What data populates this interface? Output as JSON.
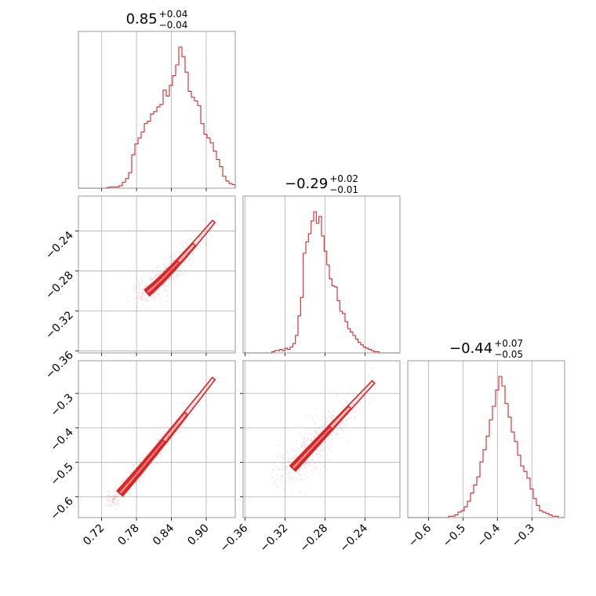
{
  "chart_data": {
    "type": "corner",
    "color": "#d62728",
    "parameters": [
      {
        "median": "0.85",
        "err_plus": "+0.04",
        "err_minus": "−0.04"
      },
      {
        "median": "−0.29",
        "err_plus": "+0.02",
        "err_minus": "−0.01"
      },
      {
        "median": "−0.44",
        "err_plus": "+0.07",
        "err_minus": "−0.05"
      }
    ],
    "ranges": [
      [
        0.68,
        0.95
      ],
      [
        -0.362,
        -0.205
      ],
      [
        -0.66,
        -0.205
      ]
    ],
    "ticks": [
      {
        "values": [
          0.72,
          0.78,
          0.84,
          0.9
        ],
        "labels": [
          "0.72",
          "0.78",
          "0.84",
          "0.90"
        ]
      },
      {
        "values": [
          -0.36,
          -0.32,
          -0.28,
          -0.24
        ],
        "labels": [
          "−0.36",
          "−0.32",
          "−0.28",
          "−0.24"
        ]
      },
      {
        "values": [
          -0.6,
          -0.5,
          -0.4,
          -0.3
        ],
        "labels": [
          "−0.6",
          "−0.5",
          "−0.4",
          "−0.3"
        ]
      }
    ],
    "histograms": [
      {
        "param": 0,
        "counts": [
          0,
          0,
          0,
          0,
          0,
          0,
          0,
          0,
          0,
          0.5,
          1,
          1,
          1,
          2,
          5,
          8,
          13,
          28,
          37,
          42,
          47,
          54,
          56,
          62,
          64,
          68,
          70,
          82,
          77,
          86,
          94,
          103,
          118,
          110,
          97,
          81,
          76,
          73,
          69,
          54,
          45,
          42,
          38,
          31,
          24,
          18,
          10,
          6,
          4,
          3
        ]
      },
      {
        "param": 1,
        "counts": [
          0,
          0,
          0,
          0,
          0,
          0,
          0,
          0,
          0,
          0,
          0,
          1,
          2,
          2,
          3,
          2,
          4,
          3,
          5,
          8,
          15,
          32,
          48,
          86,
          96,
          103,
          114,
          122,
          112,
          118,
          101,
          88,
          76,
          64,
          58,
          57,
          45,
          36,
          34,
          27,
          21,
          18,
          15,
          12,
          9,
          7,
          5,
          4,
          3,
          2,
          1,
          1,
          0,
          0,
          0,
          0,
          0,
          0,
          0,
          0
        ]
      },
      {
        "param": 2,
        "counts": [
          0,
          0,
          0,
          0,
          0,
          0,
          0,
          0,
          0,
          0,
          0,
          0,
          0,
          1,
          1,
          2,
          4,
          5,
          8,
          12,
          18,
          24,
          30,
          41,
          50,
          60,
          72,
          82,
          94,
          104,
          97,
          84,
          74,
          63,
          56,
          46,
          38,
          34,
          29,
          21,
          14,
          9,
          5,
          4,
          3,
          2,
          1,
          1,
          0,
          0
        ]
      }
    ],
    "contour_pairs": [
      {
        "x_param": 0,
        "y_param": 1
      },
      {
        "x_param": 0,
        "y_param": 2
      },
      {
        "x_param": 1,
        "y_param": 2
      }
    ]
  }
}
